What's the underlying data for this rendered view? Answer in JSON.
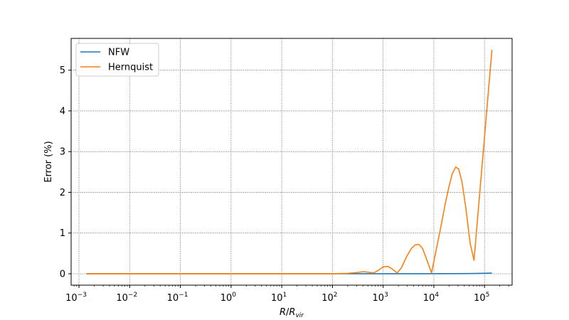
{
  "chart_data": {
    "type": "line",
    "xlabel": "R/R_vir",
    "ylabel": "Error (%)",
    "xscale": "log",
    "xlim": [
      0.0007,
      350000
    ],
    "ylim": [
      -0.28,
      5.78
    ],
    "grid": true,
    "legend_position": "upper-left",
    "x_ticks": [
      {
        "value": 0.001,
        "base": "10",
        "exp": "−3"
      },
      {
        "value": 0.01,
        "base": "10",
        "exp": "−2"
      },
      {
        "value": 0.1,
        "base": "10",
        "exp": "−1"
      },
      {
        "value": 1,
        "base": "10",
        "exp": "0"
      },
      {
        "value": 10,
        "base": "10",
        "exp": "1"
      },
      {
        "value": 100,
        "base": "10",
        "exp": "2"
      },
      {
        "value": 1000,
        "base": "10",
        "exp": "3"
      },
      {
        "value": 10000,
        "base": "10",
        "exp": "4"
      },
      {
        "value": 100000,
        "base": "10",
        "exp": "5"
      }
    ],
    "y_ticks": [
      {
        "value": 0,
        "label": "0"
      },
      {
        "value": 1,
        "label": "1"
      },
      {
        "value": 2,
        "label": "2"
      },
      {
        "value": 3,
        "label": "3"
      },
      {
        "value": 4,
        "label": "4"
      },
      {
        "value": 5,
        "label": "5"
      }
    ],
    "series": [
      {
        "name": "NFW",
        "color": "#1f77b4",
        "points": [
          [
            0.0014,
            0.0
          ],
          [
            1,
            0.0
          ],
          [
            100,
            0.0
          ],
          [
            1000,
            0.0
          ],
          [
            5000,
            0.001
          ],
          [
            20000,
            0.002
          ],
          [
            50000,
            0.005
          ],
          [
            100000,
            0.012
          ],
          [
            140000,
            0.015
          ]
        ]
      },
      {
        "name": "Hernquist",
        "color": "#ff7f0e",
        "points": [
          [
            0.0014,
            0.0
          ],
          [
            1,
            0.0
          ],
          [
            100,
            0.0
          ],
          [
            200,
            0.01
          ],
          [
            300,
            0.03
          ],
          [
            400,
            0.05
          ],
          [
            500,
            0.04
          ],
          [
            650,
            0.02
          ],
          [
            800,
            0.08
          ],
          [
            1000,
            0.17
          ],
          [
            1250,
            0.18
          ],
          [
            1500,
            0.12
          ],
          [
            1900,
            0.02
          ],
          [
            2300,
            0.15
          ],
          [
            2900,
            0.42
          ],
          [
            3600,
            0.62
          ],
          [
            4300,
            0.71
          ],
          [
            5100,
            0.72
          ],
          [
            6000,
            0.62
          ],
          [
            7000,
            0.4
          ],
          [
            9000,
            0.02
          ],
          [
            11000,
            0.55
          ],
          [
            14000,
            1.2
          ],
          [
            17000,
            1.75
          ],
          [
            20000,
            2.15
          ],
          [
            23000,
            2.45
          ],
          [
            27000,
            2.62
          ],
          [
            31000,
            2.57
          ],
          [
            36000,
            2.25
          ],
          [
            43000,
            1.6
          ],
          [
            52000,
            0.75
          ],
          [
            62000,
            0.33
          ],
          [
            140000,
            5.5
          ]
        ]
      }
    ]
  }
}
